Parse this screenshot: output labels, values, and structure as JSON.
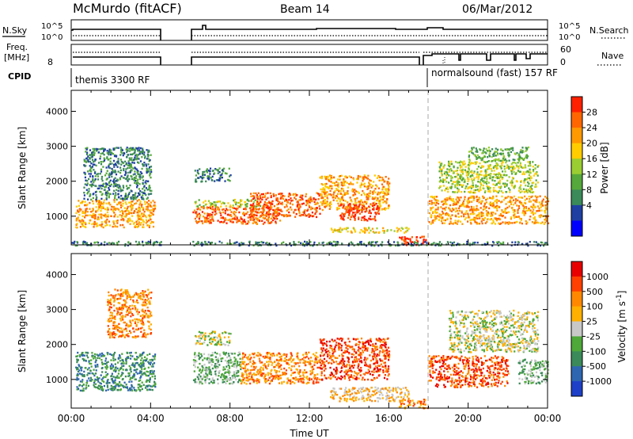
{
  "header": {
    "station": "McMurdo (fitACF)",
    "beam": "Beam 14",
    "date": "06/Mar/2012"
  },
  "panels": {
    "nsky_label": "N.Sky",
    "nsearch_label": "N.Search",
    "nsky_ticks": [
      "10^5",
      "10^0"
    ],
    "nsearch_ticks": [
      "10^5",
      "10^0"
    ],
    "freq_label_1": "Freq.",
    "freq_label_2": "[MHz]",
    "freq_tick": "8",
    "nave_label": "Nave",
    "nave_ticks": [
      "60",
      "0"
    ],
    "cpid_label": "CPID",
    "cpid_segments": [
      {
        "label": "themis 3300 RF",
        "start_hour": 0
      },
      {
        "label": "normalsound (fast) 157 RF",
        "start_hour": 18
      }
    ]
  },
  "chart_data": [
    {
      "type": "heatmap",
      "name": "power",
      "xlabel": "",
      "ylabel": "Slant Range [km]",
      "xlim": [
        0,
        24
      ],
      "ylim": [
        180,
        4600
      ],
      "yticks": [
        1000,
        2000,
        3000,
        4000
      ],
      "colorbar_label": "Power [dB]",
      "colorbar_ticks": [
        "28",
        "24",
        "20",
        "16",
        "12",
        "8",
        "4"
      ],
      "colors": [
        "#0000ff",
        "#1f3fa3",
        "#3b8a5a",
        "#55a83b",
        "#9acd32",
        "#ffcc00",
        "#ff9900",
        "#ff6600",
        "#ff2000"
      ],
      "data_gaps_hours": [
        [
          4.5,
          6.0
        ]
      ],
      "echo_regions": [
        {
          "t0": 0.2,
          "t1": 4.2,
          "r0": 700,
          "r1": 1500,
          "level": 6
        },
        {
          "t0": 0.6,
          "t1": 4.0,
          "r0": 1500,
          "r1": 3000,
          "level": 2
        },
        {
          "t0": 6.1,
          "t1": 10.5,
          "r0": 800,
          "r1": 1300,
          "level": 7
        },
        {
          "t0": 6.2,
          "t1": 9.5,
          "r0": 1300,
          "r1": 1500,
          "level": 4
        },
        {
          "t0": 9.0,
          "t1": 12.5,
          "r0": 1000,
          "r1": 1700,
          "level": 7
        },
        {
          "t0": 12.5,
          "t1": 16.0,
          "r0": 1200,
          "r1": 2200,
          "level": 6
        },
        {
          "t0": 13.5,
          "t1": 15.5,
          "r0": 900,
          "r1": 1400,
          "level": 8
        },
        {
          "t0": 6.2,
          "t1": 8.0,
          "r0": 2000,
          "r1": 2400,
          "level": 2
        },
        {
          "t0": 13.0,
          "t1": 17.0,
          "r0": 550,
          "r1": 700,
          "level": 5
        },
        {
          "t0": 16.5,
          "t1": 18.0,
          "r0": 200,
          "r1": 450,
          "level": 8
        },
        {
          "t0": 18.0,
          "t1": 24.0,
          "r0": 800,
          "r1": 1600,
          "level": 6
        },
        {
          "t0": 18.5,
          "t1": 23.5,
          "r0": 1700,
          "r1": 2600,
          "level": 4
        },
        {
          "t0": 20.0,
          "t1": 23.0,
          "r0": 2600,
          "r1": 3000,
          "level": 3
        },
        {
          "t0": 0.0,
          "t1": 24.0,
          "r0": 180,
          "r1": 300,
          "level": 2
        }
      ]
    },
    {
      "type": "heatmap",
      "name": "velocity",
      "xlabel": "Time UT",
      "ylabel": "Slant Range [km]",
      "xlim": [
        0,
        24
      ],
      "ylim": [
        180,
        4600
      ],
      "yticks": [
        1000,
        2000,
        3000,
        4000
      ],
      "xticks": [
        "00:00",
        "04:00",
        "08:00",
        "12:00",
        "16:00",
        "20:00",
        "00:00"
      ],
      "colorbar_label": "Velocity [m s^-1]",
      "colorbar_ticks": [
        "1000",
        "500",
        "100",
        "25",
        "-25",
        "-100",
        "-500",
        "-1000"
      ],
      "colors": [
        "#1e40c8",
        "#2f66b0",
        "#3b8a5a",
        "#4ea83a",
        "#c8c8c8",
        "#ffb000",
        "#ff8800",
        "#ff4000",
        "#e80000"
      ],
      "data_gaps_hours": [
        [
          4.5,
          6.0
        ]
      ],
      "echo_regions": [
        {
          "t0": 0.2,
          "t1": 4.2,
          "r0": 700,
          "r1": 1800,
          "level": 2
        },
        {
          "t0": 1.8,
          "t1": 4.0,
          "r0": 2200,
          "r1": 3600,
          "level": 6
        },
        {
          "t0": 6.1,
          "t1": 8.5,
          "r0": 900,
          "r1": 1800,
          "level": 3
        },
        {
          "t0": 6.2,
          "t1": 8.0,
          "r0": 2000,
          "r1": 2400,
          "level": 4
        },
        {
          "t0": 8.5,
          "t1": 12.5,
          "r0": 900,
          "r1": 1800,
          "level": 6
        },
        {
          "t0": 12.5,
          "t1": 16.0,
          "r0": 1000,
          "r1": 2200,
          "level": 7
        },
        {
          "t0": 13.0,
          "t1": 17.0,
          "r0": 400,
          "r1": 800,
          "level": 5
        },
        {
          "t0": 16.5,
          "t1": 18.0,
          "r0": 200,
          "r1": 450,
          "level": 6
        },
        {
          "t0": 18.0,
          "t1": 22.0,
          "r0": 800,
          "r1": 1700,
          "level": 7
        },
        {
          "t0": 19.0,
          "t1": 23.5,
          "r0": 1800,
          "r1": 3000,
          "level": 4
        },
        {
          "t0": 22.5,
          "t1": 24.0,
          "r0": 900,
          "r1": 1600,
          "level": 3
        }
      ]
    }
  ]
}
